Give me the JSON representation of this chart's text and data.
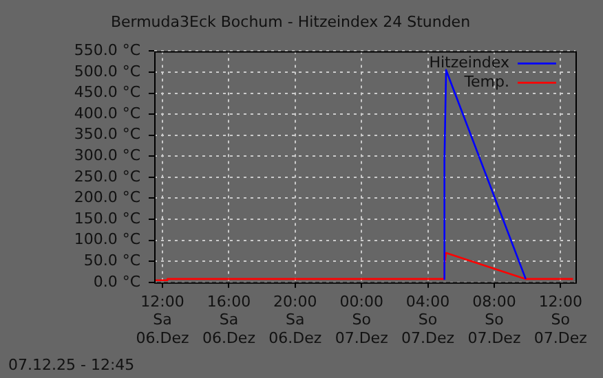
{
  "chart_data": {
    "type": "line",
    "title": "Bermuda3Eck Bochum - Hitzeindex 24 Stunden",
    "annotations": [
      "07.12.25 - 12:45"
    ],
    "series": [
      {
        "name": "Hitzeindex",
        "color": "#0000ff",
        "x": [
          "--12-07T04:57",
          "--12-07T05:00",
          "--12-07T05:06",
          "--12-07T09:54"
        ],
        "values": [
          8,
          290,
          505,
          8
        ]
      },
      {
        "name": "Temp.",
        "color": "#ff0000",
        "x": [
          "--12-06T11:30",
          "--12-06T12:18",
          "--12-06T12:18",
          "--12-07T04:57",
          "--12-07T05:00",
          "--12-07T05:06",
          "--12-07T09:54",
          "--12-07T12:45"
        ],
        "values": [
          5,
          5,
          8,
          8,
          43,
          70,
          8,
          8
        ]
      }
    ],
    "xlim": [
      "--12-06T11:30",
      "--12-07T12:54"
    ],
    "xticks": [
      {
        "value": "--12-06T12:00",
        "label": "12:00\nSa\n06.Dez"
      },
      {
        "value": "--12-06T16:00",
        "label": "16:00\nSa\n06.Dez"
      },
      {
        "value": "--12-06T20:00",
        "label": "20:00\nSa\n06.Dez"
      },
      {
        "value": "--12-07T00:00",
        "label": "00:00\nSo\n07.Dez"
      },
      {
        "value": "--12-07T04:00",
        "label": "04:00\nSo\n07.Dez"
      },
      {
        "value": "--12-07T08:00",
        "label": "08:00\nSo\n07.Dez"
      },
      {
        "value": "--12-07T12:00",
        "label": "12:00\nSo\n07.Dez"
      }
    ],
    "ylim": [
      0,
      550
    ],
    "yticks": [
      {
        "value": 0,
        "label": "0.0 °C"
      },
      {
        "value": 50,
        "label": "50.0 °C"
      },
      {
        "value": 100,
        "label": "100.0 °C"
      },
      {
        "value": 150,
        "label": "150.0 °C"
      },
      {
        "value": 200,
        "label": "200.0 °C"
      },
      {
        "value": 250,
        "label": "250.0 °C"
      },
      {
        "value": 300,
        "label": "300.0 °C"
      },
      {
        "value": 350,
        "label": "350.0 °C"
      },
      {
        "value": 400,
        "label": "400.0 °C"
      },
      {
        "value": 450,
        "label": "450.0 °C"
      },
      {
        "value": 500,
        "label": "500.0 °C"
      },
      {
        "value": 550,
        "label": "550.0 °C"
      }
    ],
    "grid": true,
    "legend": "top right",
    "marker": "none",
    "line_style": "solid"
  }
}
